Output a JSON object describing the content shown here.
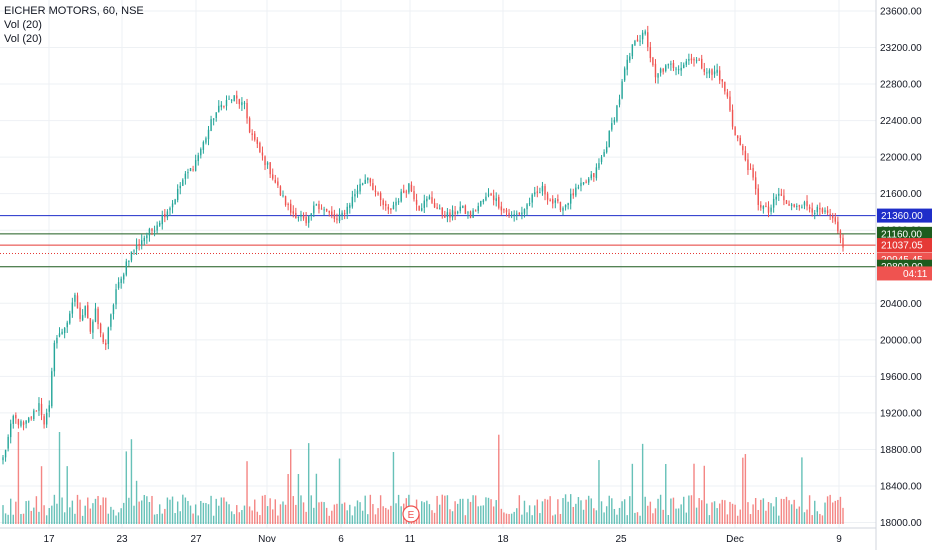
{
  "legend": {
    "symbol": "EICHER MOTORS, 60, NSE",
    "vol1": "Vol (20)",
    "vol2": "Vol (20)"
  },
  "colors": {
    "up": "#26a69a",
    "down": "#ef5350",
    "blue_line": "#1f2ec9",
    "green_line": "#1e5c1e",
    "red_line": "#e53935",
    "grid": "#eef1f4",
    "axis_text": "#131722"
  },
  "chart_data": {
    "type": "candlestick",
    "y_axis": {
      "range": [
        17940,
        23720
      ],
      "ticks": [
        "18000.00",
        "18400.00",
        "18800.00",
        "19200.00",
        "19600.00",
        "20000.00",
        "20400.00",
        "20800.00",
        "21200.00",
        "21600.00",
        "22000.00",
        "22400.00",
        "22800.00",
        "23200.00",
        "23600.00"
      ],
      "position": "right"
    },
    "x_axis": {
      "tick_labels": [
        "17",
        "23",
        "27",
        "Nov",
        "6",
        "11",
        "18",
        "25",
        "Dec",
        "9"
      ]
    },
    "levels": [
      {
        "value": 21360,
        "label": "21360.00",
        "style": "blue"
      },
      {
        "value": 21160,
        "label": "21160.00",
        "style": "green"
      },
      {
        "value": 21037.05,
        "label": "21037.05",
        "style": "red"
      },
      {
        "value": 20945.45,
        "label": "20945.45",
        "style": "red-dotted"
      },
      {
        "value": 20800,
        "label": "20800.00",
        "style": "green"
      }
    ],
    "countdown": "04:11",
    "earnings_marker": "E",
    "anchors": [
      [
        0,
        18700
      ],
      [
        4,
        19150
      ],
      [
        8,
        19050
      ],
      [
        12,
        19200
      ],
      [
        14,
        19300
      ],
      [
        16,
        19100
      ],
      [
        18,
        19250
      ],
      [
        20,
        20000
      ],
      [
        22,
        20050
      ],
      [
        26,
        20250
      ],
      [
        28,
        20500
      ],
      [
        30,
        20200
      ],
      [
        32,
        20400
      ],
      [
        34,
        20100
      ],
      [
        36,
        20300
      ],
      [
        38,
        20050
      ],
      [
        40,
        19950
      ],
      [
        44,
        20550
      ],
      [
        46,
        20650
      ],
      [
        48,
        20850
      ],
      [
        50,
        20950
      ],
      [
        54,
        21100
      ],
      [
        58,
        21200
      ],
      [
        62,
        21350
      ],
      [
        66,
        21500
      ],
      [
        70,
        21750
      ],
      [
        74,
        21900
      ],
      [
        78,
        22150
      ],
      [
        82,
        22450
      ],
      [
        86,
        22600
      ],
      [
        90,
        22650
      ],
      [
        94,
        22550
      ],
      [
        96,
        22300
      ],
      [
        100,
        22050
      ],
      [
        104,
        21850
      ],
      [
        108,
        21600
      ],
      [
        112,
        21400
      ],
      [
        116,
        21350
      ],
      [
        118,
        21250
      ],
      [
        122,
        21500
      ],
      [
        126,
        21400
      ],
      [
        130,
        21300
      ],
      [
        134,
        21450
      ],
      [
        138,
        21650
      ],
      [
        142,
        21800
      ],
      [
        146,
        21550
      ],
      [
        150,
        21400
      ],
      [
        154,
        21550
      ],
      [
        158,
        21700
      ],
      [
        162,
        21450
      ],
      [
        166,
        21550
      ],
      [
        170,
        21400
      ],
      [
        174,
        21350
      ],
      [
        178,
        21450
      ],
      [
        182,
        21350
      ],
      [
        186,
        21500
      ],
      [
        190,
        21600
      ],
      [
        194,
        21450
      ],
      [
        198,
        21350
      ],
      [
        202,
        21400
      ],
      [
        206,
        21550
      ],
      [
        210,
        21650
      ],
      [
        214,
        21500
      ],
      [
        218,
        21450
      ],
      [
        222,
        21600
      ],
      [
        226,
        21700
      ],
      [
        230,
        21800
      ],
      [
        234,
        22050
      ],
      [
        238,
        22450
      ],
      [
        240,
        22650
      ],
      [
        242,
        22950
      ],
      [
        244,
        23100
      ],
      [
        246,
        23300
      ],
      [
        248,
        23300
      ],
      [
        250,
        23350
      ],
      [
        252,
        23100
      ],
      [
        254,
        22850
      ],
      [
        256,
        22950
      ],
      [
        260,
        23000
      ],
      [
        264,
        23000
      ],
      [
        268,
        23100
      ],
      [
        272,
        23000
      ],
      [
        276,
        22900
      ],
      [
        278,
        22950
      ],
      [
        282,
        22650
      ],
      [
        284,
        22350
      ],
      [
        288,
        22050
      ],
      [
        292,
        21750
      ],
      [
        294,
        21500
      ],
      [
        298,
        21400
      ],
      [
        302,
        21600
      ],
      [
        306,
        21450
      ],
      [
        310,
        21500
      ],
      [
        314,
        21450
      ],
      [
        318,
        21400
      ],
      [
        322,
        21350
      ],
      [
        324,
        21250
      ],
      [
        326,
        21100
      ],
      [
        327,
        21000
      ]
    ]
  }
}
